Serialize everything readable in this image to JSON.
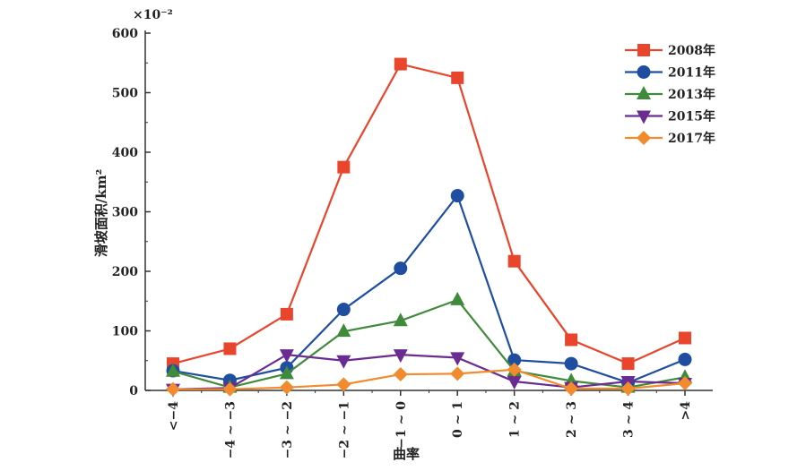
{
  "chart_data": {
    "type": "line",
    "xlabel": "曲率",
    "ylabel": "滑坡面积/km²",
    "y_multiplier": "×10⁻²",
    "categories": [
      "<−4",
      "−4 ~ −3",
      "−3 ~ −2",
      "−2 ~ −1",
      "−1 ~ 0",
      "0 ~ 1",
      "1 ~ 2",
      "2 ~ 3",
      "3 ~ 4",
      ">4"
    ],
    "ylim": [
      0,
      600
    ],
    "yticks": [
      0,
      100,
      200,
      300,
      400,
      500,
      600
    ],
    "legend_position": "top-right",
    "grid": false,
    "series": [
      {
        "name": "2008年",
        "color": "#E8452C",
        "marker": "square",
        "values": [
          45,
          70,
          128,
          375,
          548,
          525,
          217,
          85,
          45,
          88
        ]
      },
      {
        "name": "2011年",
        "color": "#1F4EA1",
        "marker": "circle",
        "values": [
          33,
          17,
          38,
          136,
          205,
          327,
          51,
          45,
          13,
          52
        ]
      },
      {
        "name": "2013年",
        "color": "#3F8A3B",
        "marker": "triangle-up",
        "values": [
          32,
          5,
          28,
          99,
          117,
          152,
          33,
          16,
          5,
          22
        ]
      },
      {
        "name": "2015年",
        "color": "#6A2C91",
        "marker": "triangle-down",
        "values": [
          2,
          4,
          60,
          50,
          60,
          55,
          15,
          5,
          15,
          12
        ]
      },
      {
        "name": "2017年",
        "color": "#F28A2E",
        "marker": "diamond",
        "values": [
          2,
          2,
          5,
          10,
          27,
          28,
          35,
          3,
          3,
          12
        ]
      }
    ]
  }
}
